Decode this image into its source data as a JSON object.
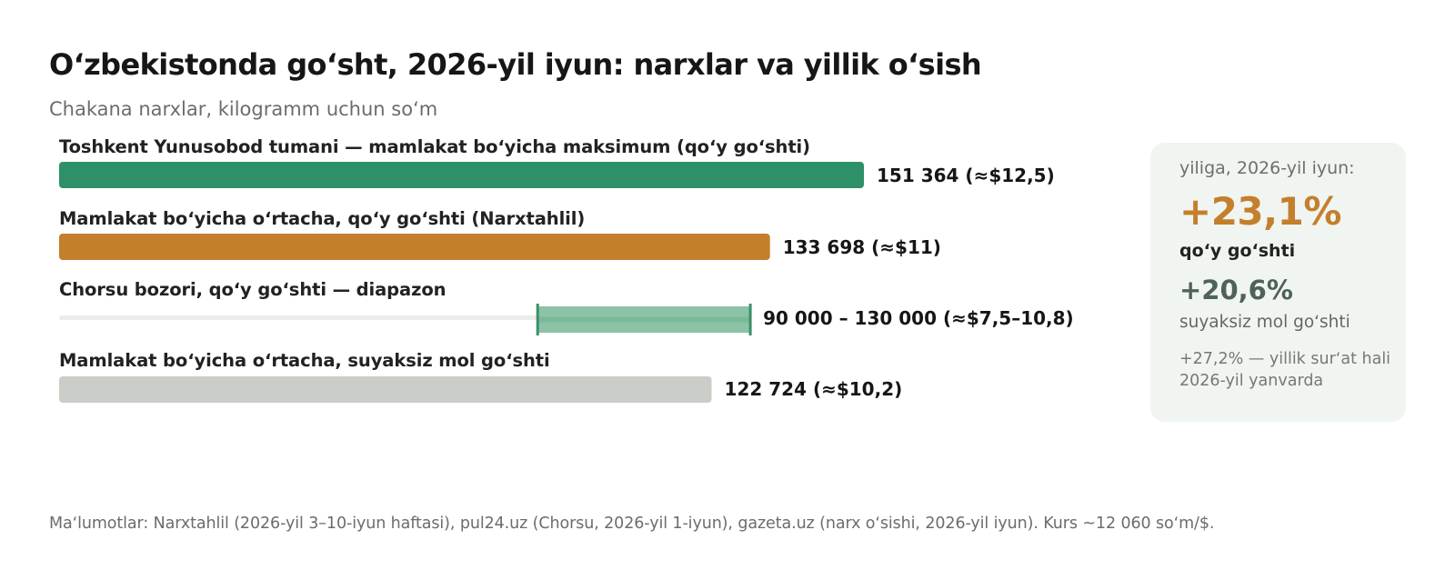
{
  "title": "Oʻzbekistonda goʻsht, 2026-yil iyun: narxlar va yillik oʻsish",
  "subtitle": "Chakana narxlar, kilogramm uchun soʻm",
  "chart_data": {
    "type": "bar",
    "orientation": "horizontal",
    "xlim": [
      0,
      160000
    ],
    "grid": false,
    "legend": "none",
    "bars": [
      {
        "label": "Toshkent Yunusobod tumani — mamlakat boʻyicha maksimum (qoʻy goʻshti)",
        "kind": "value",
        "value": 151364,
        "value_label": "151 364 (≈$12,5)",
        "color": "#2e9069"
      },
      {
        "label": "Mamlakat boʻyicha oʻrtacha, qoʻy goʻshti (Narxtahlil)",
        "kind": "value",
        "value": 133698,
        "value_label": "133 698 (≈$11)",
        "color": "#c47f2c"
      },
      {
        "label": "Chorsu bozori, qoʻy goʻshti — diapazon",
        "kind": "range",
        "min": 90000,
        "max": 130000,
        "value_label": "90 000 – 130 000 (≈$7,5–10,8)",
        "color": "#8cc3a7",
        "edge_color": "#3a8f69",
        "track_color": "#ececec"
      },
      {
        "label": "Mamlakat boʻyicha oʻrtacha, suyaksiz mol goʻshti",
        "kind": "value",
        "value": 122724,
        "value_label": "122 724 (≈$10,2)",
        "color": "#cbcdc8"
      }
    ]
  },
  "card": {
    "heading": "yiliga, 2026-yil iyun:",
    "big_value": "+23,1%",
    "big_caption": "qoʻy goʻshti",
    "second_value": "+20,6%",
    "second_caption": "suyaksiz mol goʻshti",
    "note": "+27,2% — yillik surʻat hali 2026-yil yanvarda"
  },
  "source": "Maʻlumotlar: Narxtahlil (2026-yil 3–10-iyun haftasi), pul24.uz (Chorsu, 2026-yil 1-iyun), gazeta.uz (narx oʻsishi, 2026-yil iyun). Kurs ~12 060 soʻm/$."
}
